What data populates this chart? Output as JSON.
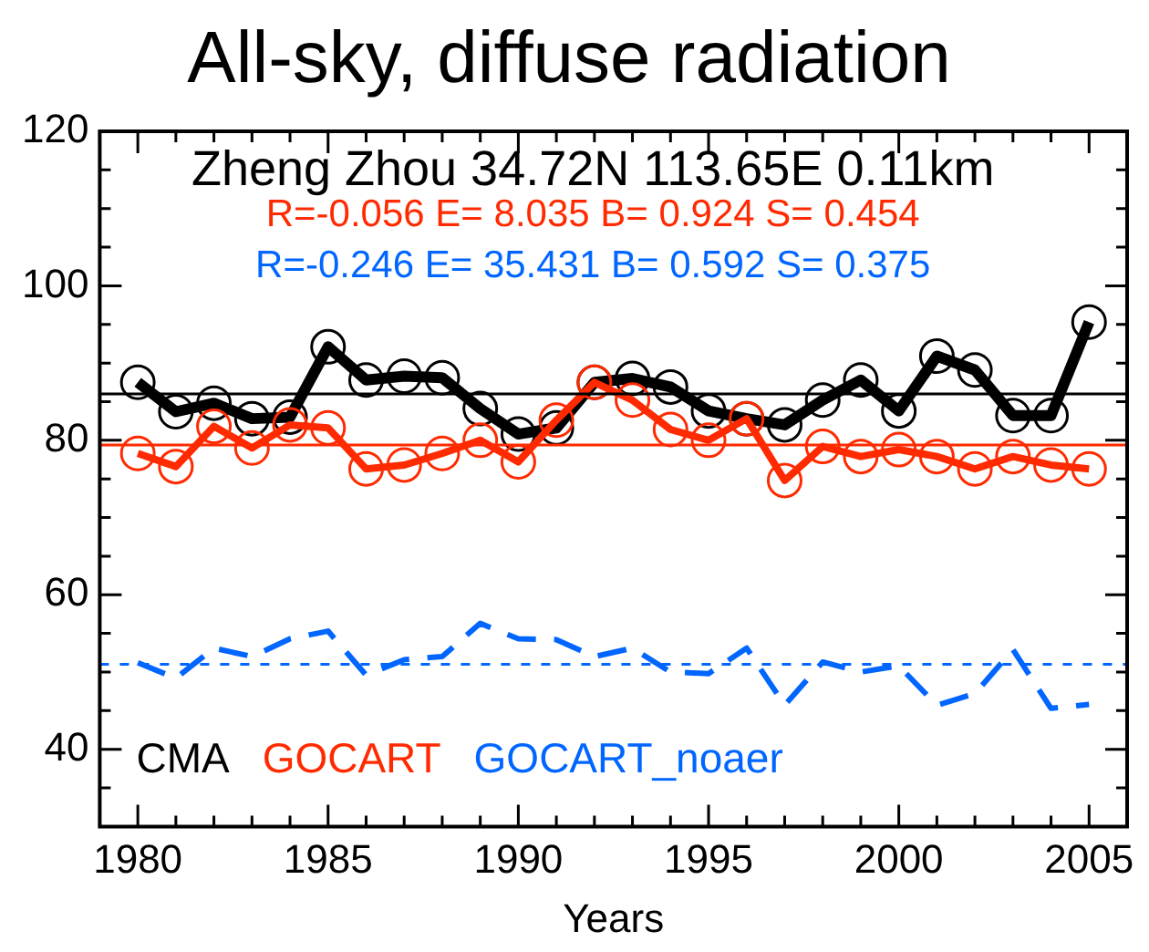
{
  "chart_data": {
    "type": "line",
    "title": "All-sky, diffuse radiation",
    "xlabel": "Years",
    "x": [
      1980,
      1981,
      1982,
      1983,
      1984,
      1985,
      1986,
      1987,
      1988,
      1989,
      1990,
      1991,
      1992,
      1993,
      1994,
      1995,
      1996,
      1997,
      1998,
      1999,
      2000,
      2001,
      2002,
      2003,
      2004,
      2005
    ],
    "series": [
      {
        "name": "CMA",
        "color": "#000000",
        "marker": "circle",
        "line_style": "solid",
        "values": [
          87.5,
          83.7,
          84.8,
          82.8,
          83.0,
          92.1,
          87.8,
          88.3,
          88.1,
          84.1,
          80.8,
          81.6,
          87.5,
          88.0,
          86.9,
          83.8,
          82.8,
          82.0,
          85.2,
          87.8,
          83.8,
          90.9,
          89.1,
          83.2,
          83.2,
          95.3
        ]
      },
      {
        "name": "GOCART",
        "color": "#ff2a00",
        "marker": "circle",
        "line_style": "solid",
        "values": [
          78.3,
          76.6,
          81.8,
          79.0,
          82.0,
          81.6,
          76.3,
          76.8,
          78.3,
          80.0,
          77.2,
          82.6,
          87.5,
          85.2,
          81.4,
          80.0,
          82.8,
          74.8,
          79.2,
          77.9,
          78.8,
          77.9,
          76.3,
          77.9,
          76.8,
          76.3
        ]
      },
      {
        "name": "GOCART_noaer",
        "color": "#0066ff",
        "marker": "none",
        "line_style": "dashed",
        "values": [
          51.2,
          49.2,
          53.1,
          52.0,
          54.3,
          55.3,
          49.6,
          51.6,
          52.0,
          56.3,
          54.3,
          54.2,
          52.0,
          53.1,
          50.0,
          49.8,
          53.1,
          45.7,
          51.3,
          50.0,
          50.8,
          45.7,
          47.2,
          52.9,
          45.3,
          45.8
        ]
      }
    ],
    "ref_lines": [
      {
        "axis": "y",
        "value": 86.0,
        "color": "#000000",
        "line_style": "solid"
      },
      {
        "axis": "y",
        "value": 79.4,
        "color": "#ff2a00",
        "line_style": "solid"
      },
      {
        "axis": "y",
        "value": 51.0,
        "color": "#0066ff",
        "line_style": "dashed"
      }
    ],
    "annotations": [
      "Zheng Zhou 34.72N 113.65E 0.11km",
      "R=-0.056 E= 8.035 B= 0.924 S= 0.454",
      "R=-0.246 E= 35.431 B= 0.592 S= 0.375"
    ],
    "xlim": [
      1979,
      2006
    ],
    "xticks": [
      {
        "value": 1979,
        "label": null
      },
      1980,
      {
        "value": 1981,
        "label": null
      },
      {
        "value": 1982,
        "label": null
      },
      {
        "value": 1983,
        "label": null
      },
      {
        "value": 1984,
        "label": null
      },
      1985,
      {
        "value": 1986,
        "label": null
      },
      {
        "value": 1987,
        "label": null
      },
      {
        "value": 1988,
        "label": null
      },
      {
        "value": 1989,
        "label": null
      },
      1990,
      {
        "value": 1991,
        "label": null
      },
      {
        "value": 1992,
        "label": null
      },
      {
        "value": 1993,
        "label": null
      },
      {
        "value": 1994,
        "label": null
      },
      1995,
      {
        "value": 1996,
        "label": null
      },
      {
        "value": 1997,
        "label": null
      },
      {
        "value": 1998,
        "label": null
      },
      {
        "value": 1999,
        "label": null
      },
      2000,
      {
        "value": 2001,
        "label": null
      },
      {
        "value": 2002,
        "label": null
      },
      {
        "value": 2003,
        "label": null
      },
      {
        "value": 2004,
        "label": null
      },
      2005,
      {
        "value": 2006,
        "label": null
      }
    ],
    "ylim": [
      30,
      120
    ],
    "yticks": [
      {
        "value": 30,
        "label": null
      },
      {
        "value": 35,
        "label": null
      },
      40,
      {
        "value": 45,
        "label": null
      },
      {
        "value": 50,
        "label": null
      },
      {
        "value": 55,
        "label": null
      },
      60,
      {
        "value": 65,
        "label": null
      },
      {
        "value": 70,
        "label": null
      },
      {
        "value": 75,
        "label": null
      },
      80,
      {
        "value": 85,
        "label": null
      },
      {
        "value": 90,
        "label": null
      },
      {
        "value": 95,
        "label": null
      },
      100,
      {
        "value": 105,
        "label": null
      },
      {
        "value": 110,
        "label": null
      },
      {
        "value": 115,
        "label": null
      },
      120
    ],
    "grid": false,
    "legend": "bottom left"
  }
}
